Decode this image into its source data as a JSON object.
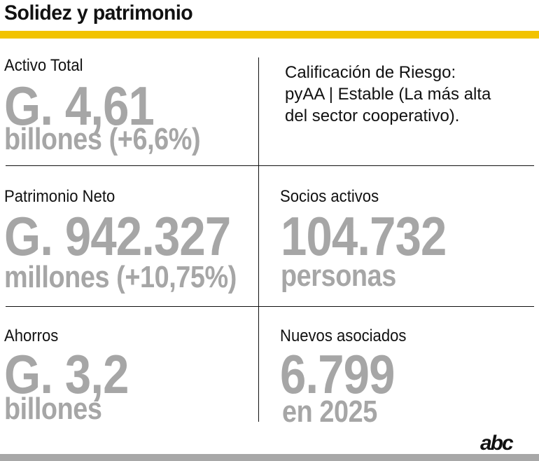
{
  "header": {
    "title": "Solidez y patrimonio"
  },
  "cells": {
    "activo": {
      "label": "Activo Total",
      "value": "G. 4,61",
      "unit": "billones (+6,6%)"
    },
    "calificacion": {
      "text": "Calificación de Riesgo: pyAA | Estable (La más alta del sector cooperativo)."
    },
    "patrimonio": {
      "label": "Patrimonio Neto",
      "value": "G. 942.327",
      "unit": "millones (+10,75%)"
    },
    "socios": {
      "label": "Socios activos",
      "value": "104.732",
      "unit": "personas"
    },
    "ahorros": {
      "label": "Ahorros",
      "value": "G. 3,2",
      "unit": "billones"
    },
    "nuevos": {
      "label": "Nuevos asociados",
      "value": "6.799",
      "unit": "en 2025"
    }
  },
  "brand": {
    "logo_text": "abc"
  },
  "colors": {
    "accent": "#f2c300",
    "figure": "#a6a6a6",
    "text": "#111111",
    "footer_bar": "#a8a8a8"
  }
}
